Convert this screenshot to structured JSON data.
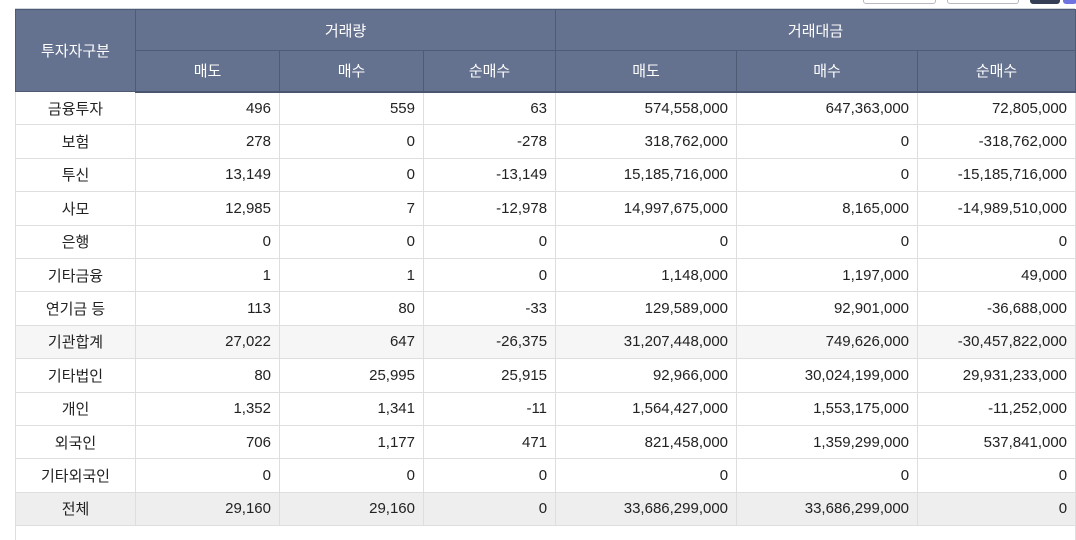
{
  "header": {
    "investor_type": "투자자구분",
    "groups": [
      {
        "label": "거래량"
      },
      {
        "label": "거래대금"
      }
    ],
    "subcolumns": [
      {
        "label": "매도"
      },
      {
        "label": "매수"
      },
      {
        "label": "순매수"
      },
      {
        "label": "매도"
      },
      {
        "label": "매수"
      },
      {
        "label": "순매수"
      }
    ]
  },
  "rows": [
    {
      "label": "금융투자",
      "vol_sell": "496",
      "vol_buy": "559",
      "vol_net": "63",
      "amt_sell": "574,558,000",
      "amt_buy": "647,363,000",
      "amt_net": "72,805,000",
      "style": "normal"
    },
    {
      "label": "보험",
      "vol_sell": "278",
      "vol_buy": "0",
      "vol_net": "-278",
      "amt_sell": "318,762,000",
      "amt_buy": "0",
      "amt_net": "-318,762,000",
      "style": "normal"
    },
    {
      "label": "투신",
      "vol_sell": "13,149",
      "vol_buy": "0",
      "vol_net": "-13,149",
      "amt_sell": "15,185,716,000",
      "amt_buy": "0",
      "amt_net": "-15,185,716,000",
      "style": "normal"
    },
    {
      "label": "사모",
      "vol_sell": "12,985",
      "vol_buy": "7",
      "vol_net": "-12,978",
      "amt_sell": "14,997,675,000",
      "amt_buy": "8,165,000",
      "amt_net": "-14,989,510,000",
      "style": "normal"
    },
    {
      "label": "은행",
      "vol_sell": "0",
      "vol_buy": "0",
      "vol_net": "0",
      "amt_sell": "0",
      "amt_buy": "0",
      "amt_net": "0",
      "style": "normal"
    },
    {
      "label": "기타금융",
      "vol_sell": "1",
      "vol_buy": "1",
      "vol_net": "0",
      "amt_sell": "1,148,000",
      "amt_buy": "1,197,000",
      "amt_net": "49,000",
      "style": "normal"
    },
    {
      "label": "연기금 등",
      "vol_sell": "113",
      "vol_buy": "80",
      "vol_net": "-33",
      "amt_sell": "129,589,000",
      "amt_buy": "92,901,000",
      "amt_net": "-36,688,000",
      "style": "normal"
    },
    {
      "label": "기관합계",
      "vol_sell": "27,022",
      "vol_buy": "647",
      "vol_net": "-26,375",
      "amt_sell": "31,207,448,000",
      "amt_buy": "749,626,000",
      "amt_net": "-30,457,822,000",
      "style": "subtotal"
    },
    {
      "label": "기타법인",
      "vol_sell": "80",
      "vol_buy": "25,995",
      "vol_net": "25,915",
      "amt_sell": "92,966,000",
      "amt_buy": "30,024,199,000",
      "amt_net": "29,931,233,000",
      "style": "normal"
    },
    {
      "label": "개인",
      "vol_sell": "1,352",
      "vol_buy": "1,341",
      "vol_net": "-11",
      "amt_sell": "1,564,427,000",
      "amt_buy": "1,553,175,000",
      "amt_net": "-11,252,000",
      "style": "normal"
    },
    {
      "label": "외국인",
      "vol_sell": "706",
      "vol_buy": "1,177",
      "vol_net": "471",
      "amt_sell": "821,458,000",
      "amt_buy": "1,359,299,000",
      "amt_net": "537,841,000",
      "style": "normal"
    },
    {
      "label": "기타외국인",
      "vol_sell": "0",
      "vol_buy": "0",
      "vol_net": "0",
      "amt_sell": "0",
      "amt_buy": "0",
      "amt_net": "0",
      "style": "normal"
    },
    {
      "label": "전체",
      "vol_sell": "29,160",
      "vol_buy": "29,160",
      "vol_net": "0",
      "amt_sell": "33,686,299,000",
      "amt_buy": "33,686,299,000",
      "amt_net": "0",
      "style": "total"
    }
  ],
  "colors": {
    "header_bg": "#65728f",
    "header_text": "#ffffff",
    "subtotal_bg": "#f6f6f6",
    "total_bg": "#eeeeee",
    "grid_line": "#dedede"
  }
}
